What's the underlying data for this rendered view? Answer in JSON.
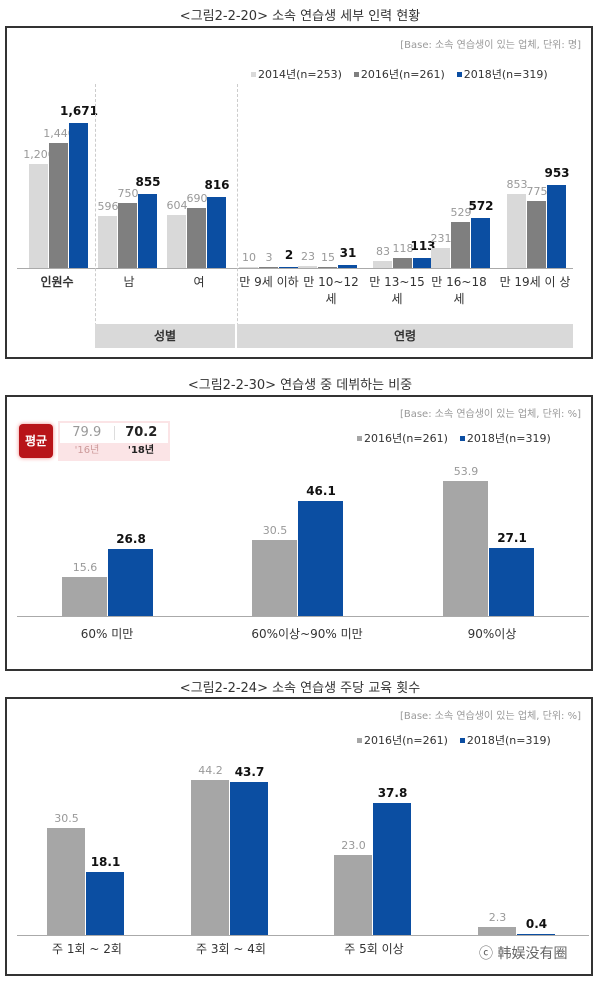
{
  "colors": {
    "s2014": "#d9d9d9",
    "s2016": "#7f7f7f",
    "s2016_alt": "#a6a6a6",
    "s2018": "#0b4ea2",
    "avg_badge": "#b81419"
  },
  "fig1": {
    "title": "<그림2-2-20> 소속 연습생 세부 인력 현황",
    "base": "[Base: 소속 연습생이 있는 업체, 단위: 명]",
    "legend": [
      "2014년(n=253)",
      "2016년(n=261)",
      "2018년(n=319)"
    ],
    "categories": [
      "인원수",
      "남",
      "여",
      "만 9세 이하",
      "만 10~12 세",
      "만 13~15 세",
      "만 16~18 세",
      "만 19세 이 상"
    ],
    "groups": [
      "성별",
      "연령"
    ]
  },
  "fig2": {
    "title": "<그림2-2-30>   연습생 중 데뷔하는 비중",
    "base": "[Base: 소속 연습생이 있는 업체, 단위: %]",
    "legend": [
      "2016년(n=261)",
      "2018년(n=319)"
    ],
    "avg": {
      "label": "평균",
      "v2016": "79.9",
      "v2018": "70.2",
      "y2016": "'16년",
      "y2018": "'18년"
    },
    "categories": [
      "60% 미만",
      "60%이상~90% 미만",
      "90%이상"
    ]
  },
  "fig3": {
    "title": "<그림2-2-24> 소속 연습생 주당 교육 횟수",
    "base": "[Base: 소속 연습생이 있는 업체, 단위: %]",
    "legend": [
      "2016년(n=261)",
      "2018년(n=319)"
    ],
    "categories": [
      "주 1회 ~ 2회",
      "주 3회 ~ 4회",
      "주 5회 이상",
      ""
    ]
  },
  "watermark": "ⓒ 韩娱没有圈",
  "chart_data": [
    {
      "type": "bar",
      "title": "<그림2-2-20> 소속 연습생 세부 인력 현황",
      "subtitle": "[Base: 소속 연습생이 있는 업체, 단위: 명]",
      "categories": [
        "인원수",
        "남",
        "여",
        "만 9세 이하",
        "만 10~12세",
        "만 13~15세",
        "만 16~18세",
        "만 19세 이상"
      ],
      "category_groups": [
        {
          "name": "성별",
          "members": [
            "남",
            "여"
          ]
        },
        {
          "name": "연령",
          "members": [
            "만 9세 이하",
            "만 10~12세",
            "만 13~15세",
            "만 16~18세",
            "만 19세 이상"
          ]
        }
      ],
      "series": [
        {
          "name": "2014년(n=253)",
          "values": [
            1200,
            596,
            604,
            10,
            23,
            83,
            231,
            853
          ]
        },
        {
          "name": "2016년(n=261)",
          "values": [
            1440,
            750,
            690,
            3,
            15,
            118,
            529,
            775
          ]
        },
        {
          "name": "2018년(n=319)",
          "values": [
            1671,
            855,
            816,
            2,
            31,
            113,
            572,
            953
          ]
        }
      ],
      "xlabel": "",
      "ylabel": "명",
      "ylim": [
        0,
        1800
      ],
      "grid": false,
      "legend_position": "top-right"
    },
    {
      "type": "bar",
      "title": "<그림2-2-30> 연습생 중 데뷔하는 비중",
      "subtitle": "[Base: 소속 연습생이 있는 업체, 단위: %]",
      "categories": [
        "60% 미만",
        "60%이상~90% 미만",
        "90%이상"
      ],
      "series": [
        {
          "name": "2016년(n=261)",
          "values": [
            15.6,
            30.5,
            53.9
          ]
        },
        {
          "name": "2018년(n=319)",
          "values": [
            26.8,
            46.1,
            27.1
          ]
        }
      ],
      "annotations": [
        {
          "text": "평균",
          "2016": 79.9,
          "2018": 70.2
        }
      ],
      "xlabel": "",
      "ylabel": "%",
      "ylim": [
        0,
        60
      ],
      "grid": false,
      "legend_position": "top-right"
    },
    {
      "type": "bar",
      "title": "<그림2-2-24> 소속 연습생 주당 교육 횟수",
      "subtitle": "[Base: 소속 연습생이 있는 업체, 단위: %]",
      "categories": [
        "주 1회 ~ 2회",
        "주 3회 ~ 4회",
        "주 5회 이상",
        "(obscured)"
      ],
      "series": [
        {
          "name": "2016년(n=261)",
          "values": [
            30.5,
            44.2,
            23.0,
            2.3
          ]
        },
        {
          "name": "2018년(n=319)",
          "values": [
            18.1,
            43.7,
            37.8,
            0.4
          ]
        }
      ],
      "xlabel": "",
      "ylabel": "%",
      "ylim": [
        0,
        50
      ],
      "grid": false,
      "legend_position": "top-right"
    }
  ]
}
